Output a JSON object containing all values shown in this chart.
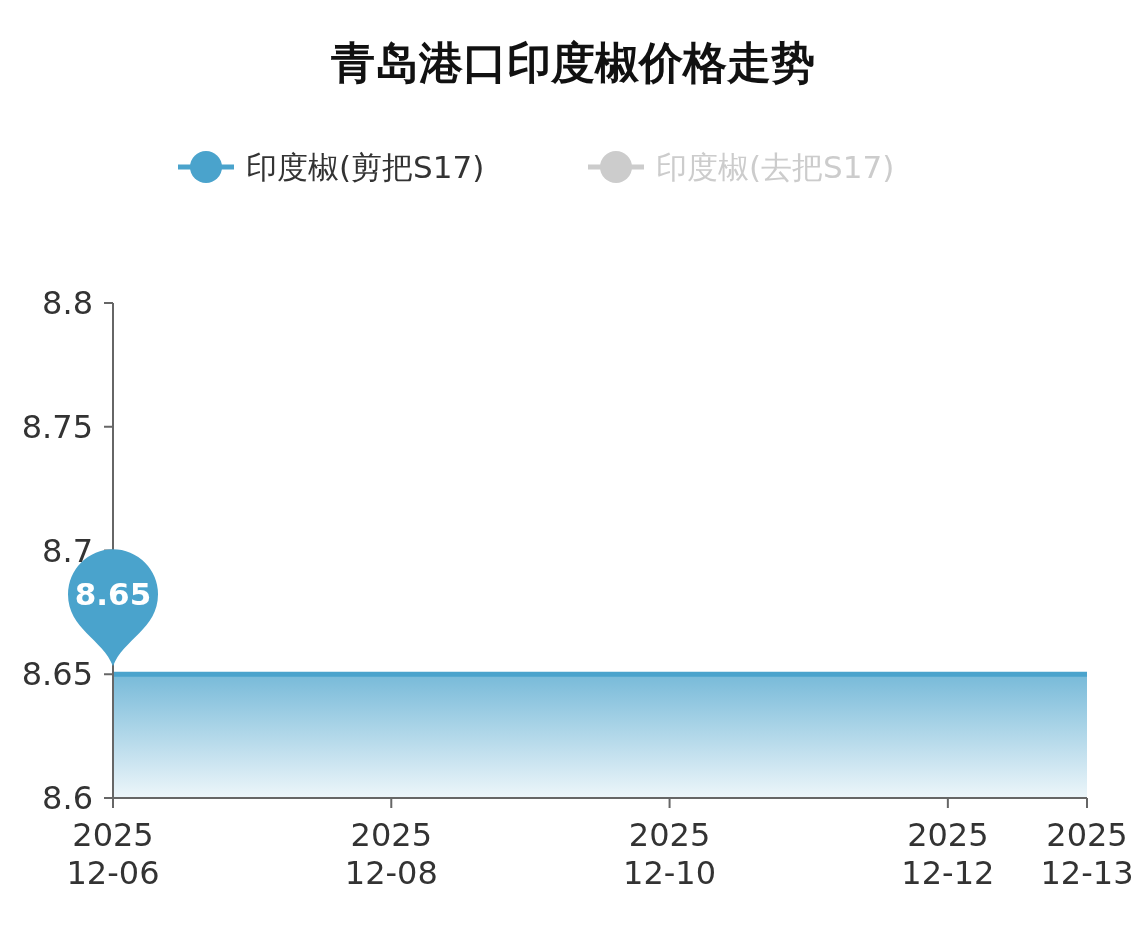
{
  "chart_data": {
    "type": "area",
    "title": "青岛港口印度椒价格走势",
    "x": [
      "2025-12-06",
      "2025-12-13"
    ],
    "series": [
      {
        "name": "印度椒(剪把S17)",
        "color": "#4aa3cc",
        "values": [
          8.65,
          8.65
        ]
      },
      {
        "name": "印度椒(去把S17)",
        "color": "#cccccc",
        "values": [
          null,
          null
        ]
      }
    ],
    "xlim": [
      "2025-12-06",
      "2025-12-13"
    ],
    "xticks": [
      {
        "value": "2025-12-06",
        "label": "2025\n12-06"
      },
      {
        "value": "2025-12-08",
        "label": "2025\n12-08"
      },
      {
        "value": "2025-12-10",
        "label": "2025\n12-10"
      },
      {
        "value": "2025-12-12",
        "label": "2025\n12-12"
      },
      {
        "value": "2025-12-13",
        "label": "2025\n12-13"
      }
    ],
    "ylim": [
      8.6,
      8.8
    ],
    "yticks": [
      8.6,
      8.65,
      8.7,
      8.75,
      8.8
    ],
    "annotations": [
      {
        "text": "8.65",
        "x": "2025-12-06",
        "y": 8.65
      }
    ],
    "legend": "top"
  }
}
